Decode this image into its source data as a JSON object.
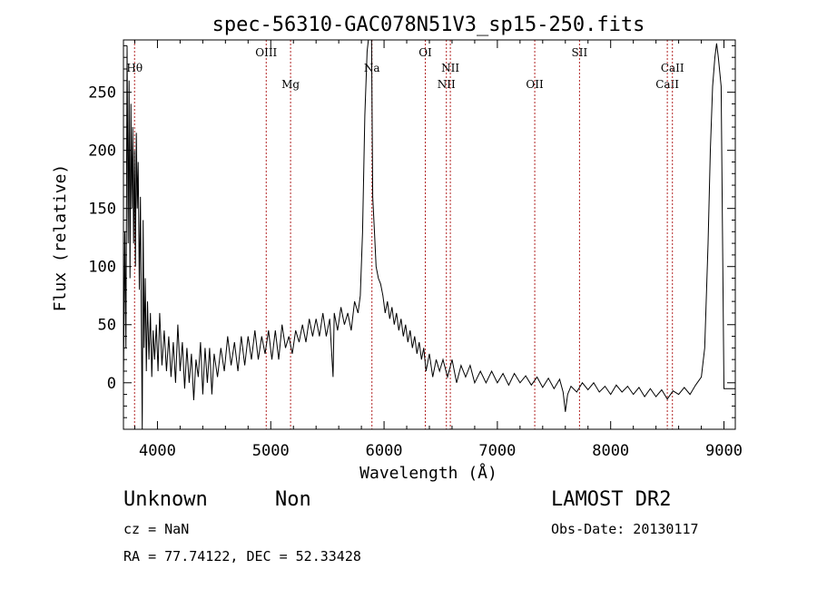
{
  "chart_data": {
    "type": "line",
    "title": "spec-56310-GAC078N51V3_sp15-250.fits",
    "xlabel": "Wavelength (Å)",
    "ylabel": "Flux (relative)",
    "xlim": [
      3700,
      9100
    ],
    "ylim": [
      -40,
      295
    ],
    "xticks": [
      4000,
      5000,
      6000,
      7000,
      8000,
      9000
    ],
    "yticks": [
      0,
      50,
      100,
      150,
      200,
      250
    ],
    "line_color": "#000000",
    "marker_color": "#b22222",
    "markers": [
      {
        "label": "Hθ",
        "x": 3798,
        "row": 1
      },
      {
        "label": "OIII",
        "x": 4960,
        "row": 0
      },
      {
        "label": "Mg",
        "x": 5175,
        "row": 2
      },
      {
        "label": "Na",
        "x": 5893,
        "row": 1
      },
      {
        "label": "OI",
        "x": 6364,
        "row": 0
      },
      {
        "label": "NII",
        "x": 6550,
        "row": 2
      },
      {
        "label": "NII",
        "x": 6585,
        "row": 1
      },
      {
        "label": "OII",
        "x": 7330,
        "row": 2
      },
      {
        "label": "SII",
        "x": 7725,
        "row": 0
      },
      {
        "label": "CaII",
        "x": 8500,
        "row": 2
      },
      {
        "label": "CaII",
        "x": 8545,
        "row": 1
      }
    ],
    "series": [
      {
        "points": [
          [
            3700,
            0
          ],
          [
            3712,
            130
          ],
          [
            3722,
            30
          ],
          [
            3732,
            290
          ],
          [
            3742,
            120
          ],
          [
            3750,
            260
          ],
          [
            3758,
            90
          ],
          [
            3766,
            240
          ],
          [
            3774,
            150
          ],
          [
            3782,
            220
          ],
          [
            3790,
            120
          ],
          [
            3798,
            200
          ],
          [
            3806,
            100
          ],
          [
            3814,
            215
          ],
          [
            3822,
            150
          ],
          [
            3830,
            190
          ],
          [
            3840,
            80
          ],
          [
            3850,
            160
          ],
          [
            3858,
            55
          ],
          [
            3866,
            -40
          ],
          [
            3874,
            140
          ],
          [
            3882,
            30
          ],
          [
            3892,
            90
          ],
          [
            3902,
            10
          ],
          [
            3912,
            70
          ],
          [
            3925,
            20
          ],
          [
            3938,
            60
          ],
          [
            3950,
            5
          ],
          [
            3962,
            45
          ],
          [
            3975,
            20
          ],
          [
            3990,
            50
          ],
          [
            4005,
            10
          ],
          [
            4020,
            60
          ],
          [
            4040,
            15
          ],
          [
            4060,
            45
          ],
          [
            4080,
            10
          ],
          [
            4100,
            40
          ],
          [
            4120,
            5
          ],
          [
            4140,
            35
          ],
          [
            4160,
            0
          ],
          [
            4180,
            50
          ],
          [
            4200,
            10
          ],
          [
            4220,
            35
          ],
          [
            4240,
            -5
          ],
          [
            4260,
            30
          ],
          [
            4280,
            0
          ],
          [
            4300,
            25
          ],
          [
            4320,
            -15
          ],
          [
            4340,
            20
          ],
          [
            4360,
            5
          ],
          [
            4380,
            35
          ],
          [
            4400,
            -10
          ],
          [
            4420,
            30
          ],
          [
            4440,
            0
          ],
          [
            4460,
            30
          ],
          [
            4480,
            -10
          ],
          [
            4500,
            25
          ],
          [
            4530,
            5
          ],
          [
            4560,
            30
          ],
          [
            4590,
            10
          ],
          [
            4620,
            40
          ],
          [
            4650,
            15
          ],
          [
            4680,
            35
          ],
          [
            4710,
            10
          ],
          [
            4740,
            40
          ],
          [
            4770,
            15
          ],
          [
            4800,
            40
          ],
          [
            4830,
            20
          ],
          [
            4860,
            45
          ],
          [
            4890,
            20
          ],
          [
            4920,
            40
          ],
          [
            4950,
            25
          ],
          [
            4980,
            45
          ],
          [
            5010,
            20
          ],
          [
            5040,
            45
          ],
          [
            5070,
            20
          ],
          [
            5100,
            50
          ],
          [
            5130,
            30
          ],
          [
            5160,
            40
          ],
          [
            5190,
            25
          ],
          [
            5220,
            45
          ],
          [
            5250,
            35
          ],
          [
            5280,
            50
          ],
          [
            5310,
            35
          ],
          [
            5340,
            55
          ],
          [
            5370,
            40
          ],
          [
            5400,
            55
          ],
          [
            5430,
            40
          ],
          [
            5460,
            60
          ],
          [
            5490,
            40
          ],
          [
            5520,
            55
          ],
          [
            5550,
            5
          ],
          [
            5560,
            60
          ],
          [
            5590,
            45
          ],
          [
            5620,
            65
          ],
          [
            5650,
            50
          ],
          [
            5680,
            60
          ],
          [
            5710,
            45
          ],
          [
            5740,
            70
          ],
          [
            5770,
            60
          ],
          [
            5790,
            75
          ],
          [
            5810,
            130
          ],
          [
            5830,
            230
          ],
          [
            5850,
            285
          ],
          [
            5862,
            295
          ],
          [
            5875,
            295
          ],
          [
            5890,
            295
          ],
          [
            5900,
            160
          ],
          [
            5915,
            130
          ],
          [
            5930,
            100
          ],
          [
            5950,
            90
          ],
          [
            5970,
            85
          ],
          [
            5990,
            75
          ],
          [
            6010,
            60
          ],
          [
            6030,
            70
          ],
          [
            6050,
            55
          ],
          [
            6070,
            65
          ],
          [
            6090,
            50
          ],
          [
            6110,
            60
          ],
          [
            6130,
            45
          ],
          [
            6150,
            55
          ],
          [
            6170,
            40
          ],
          [
            6190,
            50
          ],
          [
            6210,
            35
          ],
          [
            6230,
            45
          ],
          [
            6250,
            30
          ],
          [
            6270,
            40
          ],
          [
            6290,
            25
          ],
          [
            6310,
            35
          ],
          [
            6330,
            20
          ],
          [
            6350,
            30
          ],
          [
            6370,
            10
          ],
          [
            6400,
            25
          ],
          [
            6430,
            5
          ],
          [
            6460,
            20
          ],
          [
            6490,
            10
          ],
          [
            6520,
            20
          ],
          [
            6560,
            5
          ],
          [
            6600,
            20
          ],
          [
            6640,
            0
          ],
          [
            6680,
            15
          ],
          [
            6720,
            5
          ],
          [
            6760,
            15
          ],
          [
            6800,
            0
          ],
          [
            6850,
            10
          ],
          [
            6900,
            0
          ],
          [
            6950,
            10
          ],
          [
            7000,
            0
          ],
          [
            7050,
            8
          ],
          [
            7100,
            -2
          ],
          [
            7150,
            8
          ],
          [
            7200,
            0
          ],
          [
            7250,
            6
          ],
          [
            7300,
            -2
          ],
          [
            7350,
            5
          ],
          [
            7400,
            -4
          ],
          [
            7450,
            4
          ],
          [
            7500,
            -5
          ],
          [
            7550,
            3
          ],
          [
            7580,
            -8
          ],
          [
            7600,
            -25
          ],
          [
            7620,
            -10
          ],
          [
            7650,
            -3
          ],
          [
            7700,
            -8
          ],
          [
            7750,
            0
          ],
          [
            7800,
            -6
          ],
          [
            7850,
            0
          ],
          [
            7900,
            -8
          ],
          [
            7950,
            -3
          ],
          [
            8000,
            -10
          ],
          [
            8050,
            -2
          ],
          [
            8100,
            -8
          ],
          [
            8150,
            -3
          ],
          [
            8200,
            -10
          ],
          [
            8250,
            -4
          ],
          [
            8300,
            -12
          ],
          [
            8350,
            -5
          ],
          [
            8400,
            -12
          ],
          [
            8450,
            -6
          ],
          [
            8500,
            -14
          ],
          [
            8550,
            -7
          ],
          [
            8600,
            -10
          ],
          [
            8650,
            -4
          ],
          [
            8700,
            -10
          ],
          [
            8750,
            -2
          ],
          [
            8800,
            5
          ],
          [
            8830,
            30
          ],
          [
            8860,
            120
          ],
          [
            8880,
            200
          ],
          [
            8900,
            255
          ],
          [
            8920,
            280
          ],
          [
            8935,
            292
          ],
          [
            8950,
            280
          ],
          [
            8975,
            255
          ],
          [
            9000,
            -5
          ],
          [
            9100,
            -5
          ]
        ]
      }
    ]
  },
  "info": {
    "object_class": "Unknown",
    "object_subclass": "Non",
    "cz": "cz = NaN",
    "coords": "RA =  77.74122, DEC =  52.33428",
    "survey": "LAMOST DR2",
    "obs_date": "Obs-Date: 20130117"
  }
}
